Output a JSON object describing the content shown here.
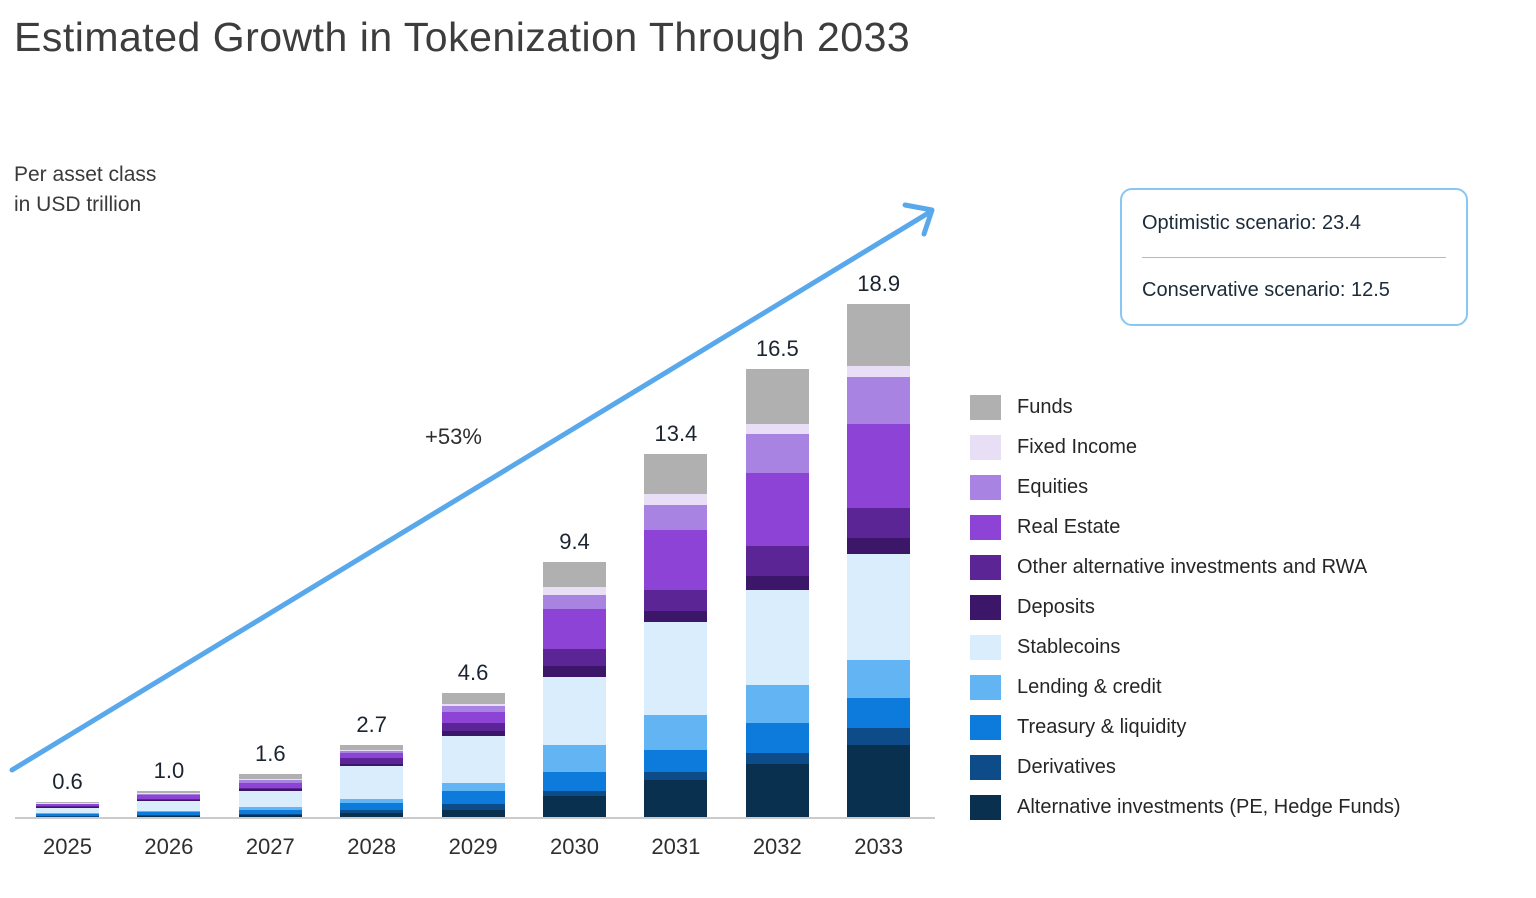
{
  "page": {
    "title": "Estimated Growth in Tokenization Through 2033"
  },
  "chart_data": {
    "type": "bar",
    "stacked": true,
    "title": "Estimated Growth in Tokenization Through 2033",
    "unit_note_line1": "Per asset class",
    "unit_note_line2": "in USD trillion",
    "xlabel": "",
    "ylabel": "USD trillion",
    "grid": false,
    "legend_position": "right",
    "growth_label": "+53%",
    "arrow_color": "#58a8eb",
    "axis_color": "#cbcbcb",
    "categories": [
      "2025",
      "2026",
      "2027",
      "2028",
      "2029",
      "2030",
      "2031",
      "2032",
      "2033"
    ],
    "totals": [
      "0.6",
      "1.0",
      "1.6",
      "2.7",
      "4.6",
      "9.4",
      "13.4",
      "16.5",
      "18.9"
    ],
    "series": [
      {
        "name": "Funds",
        "color": "#b0b0b0",
        "values": [
          0.04,
          0.07,
          0.15,
          0.2,
          0.4,
          0.9,
          1.5,
          2.0,
          2.3
        ]
      },
      {
        "name": "Fixed Income",
        "color": "#e8def6",
        "values": [
          0.02,
          0.03,
          0.05,
          0.05,
          0.1,
          0.3,
          0.4,
          0.4,
          0.4
        ]
      },
      {
        "name": "Equities",
        "color": "#a983e1",
        "values": [
          0.03,
          0.05,
          0.1,
          0.05,
          0.2,
          0.5,
          0.9,
          1.4,
          1.7
        ]
      },
      {
        "name": "Real Estate",
        "color": "#8c43d6",
        "values": [
          0.08,
          0.15,
          0.2,
          0.2,
          0.4,
          1.5,
          2.2,
          2.7,
          3.1
        ]
      },
      {
        "name": "Other alternative investments and RWA",
        "color": "#5b2596",
        "values": [
          0.03,
          0.05,
          0.05,
          0.2,
          0.3,
          0.6,
          0.8,
          1.1,
          1.1
        ]
      },
      {
        "name": "Deposits",
        "color": "#3c1669",
        "values": [
          0.02,
          0.03,
          0.05,
          0.1,
          0.2,
          0.4,
          0.4,
          0.5,
          0.6
        ]
      },
      {
        "name": "Stablecoins",
        "color": "#daedfd",
        "values": [
          0.2,
          0.35,
          0.6,
          1.2,
          1.7,
          2.5,
          3.4,
          3.5,
          3.9
        ]
      },
      {
        "name": "Lending & credit",
        "color": "#62b4f3",
        "values": [
          0.04,
          0.05,
          0.1,
          0.15,
          0.3,
          1.0,
          1.3,
          1.4,
          1.4
        ]
      },
      {
        "name": "Treasury & liquidity",
        "color": "#0c7bdb",
        "values": [
          0.07,
          0.12,
          0.15,
          0.25,
          0.5,
          0.7,
          0.8,
          1.1,
          1.1
        ]
      },
      {
        "name": "Derivatives",
        "color": "#0d4c89",
        "values": [
          0.02,
          0.04,
          0.05,
          0.1,
          0.2,
          0.2,
          0.3,
          0.4,
          0.6
        ]
      },
      {
        "name": "Alternative investments (PE, Hedge Funds)",
        "color": "#0a3050",
        "values": [
          0.05,
          0.06,
          0.1,
          0.2,
          0.3,
          0.8,
          1.4,
          2.0,
          2.7
        ]
      }
    ],
    "scenario_box": {
      "optimistic": "Optimistic scenario: 23.4",
      "conservative": "Conservative scenario: 12.5"
    }
  }
}
